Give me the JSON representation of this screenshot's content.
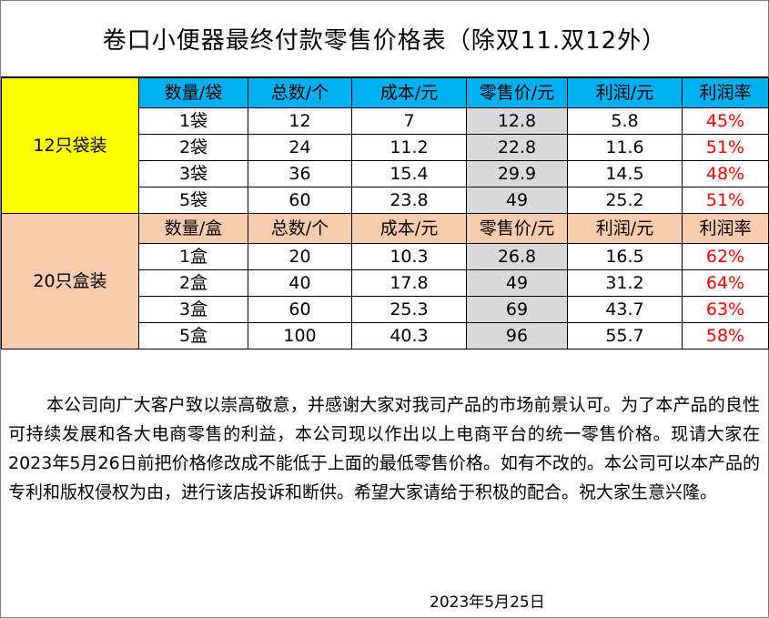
{
  "title": "卷口小便器最终付款零售价格表（除双11.双12外）",
  "bag": {
    "group_label": "12只袋装",
    "headers": [
      "数量/袋",
      "总数/个",
      "成本/元",
      "零售价/元",
      "利润/元",
      "利润率"
    ],
    "rows": [
      [
        "1袋",
        "12",
        "7",
        "12.8",
        "5.8",
        "45%"
      ],
      [
        "2袋",
        "24",
        "11.2",
        "22.8",
        "11.6",
        "51%"
      ],
      [
        "3袋",
        "36",
        "15.4",
        "29.9",
        "14.5",
        "48%"
      ],
      [
        "5袋",
        "60",
        "23.8",
        "49",
        "25.2",
        "51%"
      ]
    ]
  },
  "box": {
    "group_label": "20只盒装",
    "headers": [
      "数量/盒",
      "总数/个",
      "成本/元",
      "零售价/元",
      "利润/元",
      "利润率"
    ],
    "rows": [
      [
        "1盒",
        "20",
        "10.3",
        "26.8",
        "16.5",
        "62%"
      ],
      [
        "2盒",
        "40",
        "17.8",
        "49",
        "31.2",
        "64%"
      ],
      [
        "3盒",
        "60",
        "25.3",
        "69",
        "43.7",
        "63%"
      ],
      [
        "5盒",
        "100",
        "40.3",
        "96",
        "55.7",
        "58%"
      ]
    ]
  },
  "notice": "本公司向广大客户致以崇高敬意，并感谢大家对我司产品的市场前景认可。为了本产品的良性可持续发展和各大电商零售的利益，本公司现以作出以上电商平台的统一零售价格。现请大家在2023年5月26日前把价格修改成不能低于上面的最低零售价格。如有不改的。本公司可以本产品的专利和版权侵权为由，进行该店投诉和断供。希望大家请给于积极的配合。祝大家生意兴隆。",
  "date": "2023年5月25日",
  "colors": {
    "bag_group": "#ffff00",
    "bag_header": "#00b0f0",
    "box_group": "#f8cbad",
    "retail_col": "#d9d9d9",
    "rate_text": "#ff0000"
  }
}
